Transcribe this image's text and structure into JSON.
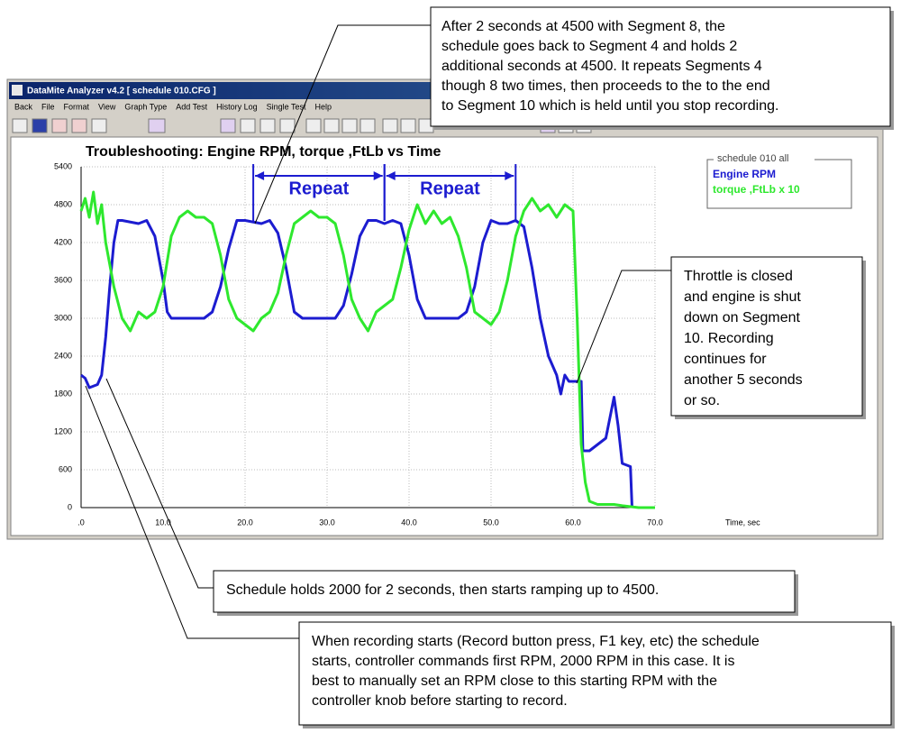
{
  "window": {
    "title": "DataMite Analyzer v4.2  [ schedule 010.CFG ]",
    "menu": [
      "Back",
      "File",
      "Format",
      "View",
      "Graph Type",
      "Add Test",
      "History Log",
      "Single Test",
      "Help"
    ]
  },
  "chart_data": {
    "type": "line",
    "title": "Troubleshooting: Engine RPM, torque ,FtLb vs Time",
    "x_label": "Time, sec",
    "legend_title": "schedule 010   all",
    "legend": "top-right",
    "grid": true,
    "xlim": [
      0,
      70
    ],
    "xticks": [
      {
        "value": 0,
        "label": ".0"
      },
      {
        "value": 10,
        "label": "10.0"
      },
      {
        "value": 20,
        "label": "20.0"
      },
      {
        "value": 30,
        "label": "30.0"
      },
      {
        "value": 40,
        "label": "40.0"
      },
      {
        "value": 50,
        "label": "50.0"
      },
      {
        "value": 60,
        "label": "60.0"
      },
      {
        "value": 70,
        "label": "70.0"
      }
    ],
    "ylim": [
      0,
      5400
    ],
    "yticks": [
      0,
      600,
      1200,
      1800,
      2400,
      3000,
      3600,
      4200,
      4800,
      5400
    ],
    "annotations": [
      {
        "text": "Repeat",
        "x_start": 21,
        "x_end": 37,
        "color": "#1c1cd0"
      },
      {
        "text": "Repeat",
        "x_start": 37,
        "x_end": 53,
        "color": "#1c1cd0"
      }
    ],
    "series": [
      {
        "name": "Engine RPM",
        "color": "#1c1cd0",
        "x": [
          0,
          0.5,
          1,
          2,
          2.5,
          3,
          3.5,
          4,
          4.5,
          5,
          7,
          8,
          9,
          10,
          10.5,
          11,
          13,
          15,
          16,
          17,
          18,
          19,
          20,
          22,
          23,
          24,
          25,
          26,
          27,
          29,
          31,
          32,
          33,
          34,
          35,
          36,
          37,
          38,
          39,
          40,
          41,
          42,
          44,
          46,
          47,
          48,
          49,
          50,
          51,
          52,
          53,
          54,
          55,
          56,
          57,
          58,
          58.5,
          59,
          59.5,
          60,
          61,
          61.2,
          62,
          63,
          64,
          65,
          65.5,
          66,
          67,
          67.2
        ],
        "values": [
          2100,
          2050,
          1900,
          1950,
          2100,
          2700,
          3500,
          4200,
          4550,
          4550,
          4500,
          4550,
          4300,
          3600,
          3100,
          3000,
          3000,
          3000,
          3100,
          3500,
          4100,
          4550,
          4550,
          4500,
          4550,
          4350,
          3800,
          3100,
          3000,
          3000,
          3000,
          3200,
          3700,
          4300,
          4550,
          4550,
          4500,
          4550,
          4500,
          4000,
          3300,
          3000,
          3000,
          3000,
          3100,
          3500,
          4200,
          4550,
          4500,
          4500,
          4550,
          4450,
          3800,
          3000,
          2400,
          2100,
          1800,
          2100,
          2000,
          2000,
          2000,
          900,
          900,
          1000,
          1100,
          1750,
          1300,
          700,
          650,
          0
        ]
      },
      {
        "name": "torque ,FtLb x 10",
        "color": "#2ee82e",
        "x": [
          0,
          0.5,
          1,
          1.5,
          2,
          2.5,
          3,
          4,
          5,
          6,
          7,
          8,
          9,
          10,
          11,
          12,
          13,
          14,
          15,
          16,
          17,
          18,
          19,
          20,
          21,
          22,
          23,
          24,
          25,
          26,
          27,
          28,
          29,
          30,
          31,
          32,
          33,
          34,
          35,
          36,
          37,
          38,
          39,
          40,
          41,
          42,
          43,
          44,
          45,
          46,
          47,
          48,
          49,
          50,
          51,
          52,
          53,
          54,
          55,
          56,
          57,
          58,
          59,
          60,
          60.5,
          61,
          61.5,
          62,
          63,
          65,
          66,
          68,
          70
        ],
        "values": [
          4700,
          4900,
          4600,
          5000,
          4500,
          4800,
          4200,
          3500,
          3000,
          2800,
          3100,
          3000,
          3100,
          3500,
          4300,
          4600,
          4700,
          4600,
          4600,
          4500,
          4000,
          3300,
          3000,
          2900,
          2800,
          3000,
          3100,
          3400,
          4000,
          4500,
          4600,
          4700,
          4600,
          4600,
          4500,
          4000,
          3300,
          3000,
          2800,
          3100,
          3200,
          3300,
          3800,
          4400,
          4800,
          4500,
          4700,
          4500,
          4600,
          4300,
          3800,
          3100,
          3000,
          2900,
          3100,
          3600,
          4300,
          4700,
          4900,
          4700,
          4800,
          4600,
          4800,
          4700,
          3000,
          1000,
          400,
          100,
          50,
          50,
          30,
          0,
          0
        ]
      }
    ]
  },
  "callouts": [
    {
      "lines": [
        "After 2 seconds at 4500 with Segment 8, the",
        "schedule goes back to Segment 4 and holds 2",
        "additional seconds at 4500.  It repeats Segments 4",
        "though 8 two times, then proceeds to the to the end",
        "to Segment 10 which is held until you stop recording."
      ]
    },
    {
      "lines": [
        "Throttle is closed",
        "and engine is shut",
        "down on Segment",
        "10.  Recording",
        "continues for",
        "another 5 seconds",
        "or so."
      ]
    },
    {
      "lines": [
        "Schedule holds 2000 for 2 seconds, then starts ramping up to 4500."
      ]
    },
    {
      "lines": [
        "When recording starts (Record button press, F1 key, etc) the schedule",
        "starts, controller commands first RPM, 2000 RPM in this case.  It is",
        "best to manually set an RPM close to this starting RPM with the",
        "controller knob before starting to record."
      ]
    }
  ]
}
